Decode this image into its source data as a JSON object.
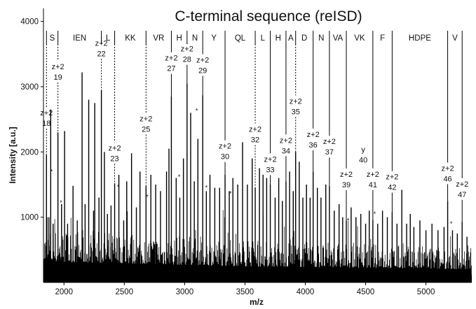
{
  "chart_data": {
    "type": "spectrum",
    "title": "C-terminal sequence (reISD)",
    "xlabel": "m/z",
    "ylabel": "Intensity [a.u.]",
    "xlim": [
      1830,
      5380
    ],
    "ylim": [
      0,
      4200
    ],
    "xticks": [
      {
        "value": 2000,
        "label": "2000"
      },
      {
        "value": 2500,
        "label": "2500"
      },
      {
        "value": 3000,
        "label": "3000"
      },
      {
        "value": 3500,
        "label": "3500"
      },
      {
        "value": 4000,
        "label": "4000"
      },
      {
        "value": 4500,
        "label": "4500"
      },
      {
        "value": 5000,
        "label": "5000"
      }
    ],
    "yticks": [
      {
        "value": 1000,
        "label": "1000"
      },
      {
        "value": 2000,
        "label": "2000"
      },
      {
        "value": 3000,
        "label": "3000"
      },
      {
        "value": 4000,
        "label": "4000"
      }
    ],
    "sequence_ladder_mz": [
      1855,
      1950,
      2310,
      2420,
      2680,
      2890,
      3020,
      3150,
      3335,
      3585,
      3710,
      3840,
      3920,
      4065,
      4200,
      4340,
      4560,
      4720,
      5180,
      5300
    ],
    "sequence_segments": [
      {
        "label": "S",
        "from": 1855,
        "to": 1950
      },
      {
        "label": "IEN",
        "from": 1950,
        "to": 2310
      },
      {
        "label": "L",
        "from": 2310,
        "to": 2420
      },
      {
        "label": "KK",
        "from": 2420,
        "to": 2680
      },
      {
        "label": "VR",
        "from": 2680,
        "to": 2890
      },
      {
        "label": "H",
        "from": 2890,
        "to": 3020
      },
      {
        "label": "N",
        "from": 3020,
        "to": 3150
      },
      {
        "label": "Y",
        "from": 3150,
        "to": 3335
      },
      {
        "label": "QL",
        "from": 3335,
        "to": 3585
      },
      {
        "label": "L",
        "from": 3585,
        "to": 3710
      },
      {
        "label": "H",
        "from": 3710,
        "to": 3840
      },
      {
        "label": "A",
        "from": 3840,
        "to": 3920
      },
      {
        "label": "D",
        "from": 3920,
        "to": 4065
      },
      {
        "label": "N",
        "from": 4065,
        "to": 4200
      },
      {
        "label": "VA",
        "from": 4200,
        "to": 4340
      },
      {
        "label": "VK",
        "from": 4340,
        "to": 4560
      },
      {
        "label": "F",
        "from": 4560,
        "to": 4720
      },
      {
        "label": "HDPE",
        "from": 4720,
        "to": 5180
      },
      {
        "label": "V",
        "from": 5180,
        "to": 5300
      }
    ],
    "ion_annotations": [
      {
        "mz": 1855,
        "top": "z+2",
        "num": "18",
        "label_y": 2420,
        "peak": 1960,
        "style": "dashed"
      },
      {
        "mz": 1950,
        "top": "z+2",
        "num": "19",
        "label_y": 3130,
        "peak": 2300,
        "style": "dashed"
      },
      {
        "mz": 2310,
        "top": "z+2",
        "num": "22",
        "label_y": 3490,
        "peak": 2950,
        "style": "dashed"
      },
      {
        "mz": 2420,
        "top": "z+2",
        "num": "23",
        "label_y": 1880,
        "peak": 1520,
        "style": "dashed"
      },
      {
        "mz": 2680,
        "top": "z+2",
        "num": "25",
        "label_y": 2330,
        "peak": 1480,
        "style": "dashed"
      },
      {
        "mz": 2890,
        "top": "z+2",
        "num": "27",
        "label_y": 3260,
        "peak": 2850,
        "style": "solid"
      },
      {
        "mz": 3020,
        "top": "z+2",
        "num": "28",
        "label_y": 3400,
        "peak": 3050,
        "style": "solid"
      },
      {
        "mz": 3150,
        "top": "z+2",
        "num": "29",
        "label_y": 3230,
        "peak": 2870,
        "style": "solid"
      },
      {
        "mz": 3335,
        "top": "z+2",
        "num": "30",
        "label_y": 1910,
        "peak": 1650,
        "style": "solid"
      },
      {
        "mz": 3585,
        "top": "z+2",
        "num": "32",
        "label_y": 2170,
        "peak": 1450,
        "style": "dashed"
      },
      {
        "mz": 3710,
        "top": "z+2",
        "num": "33",
        "label_y": 1710,
        "peak": 1500,
        "style": "solid"
      },
      {
        "mz": 3840,
        "top": "z+2",
        "num": "34",
        "label_y": 2000,
        "peak": 1550,
        "style": "solid"
      },
      {
        "mz": 3920,
        "top": "z+2",
        "num": "35",
        "label_y": 2600,
        "peak": 2000,
        "style": "dashed"
      },
      {
        "mz": 4065,
        "top": "z+2",
        "num": "36",
        "label_y": 2090,
        "peak": 1700,
        "style": "solid"
      },
      {
        "mz": 4200,
        "top": "z+2",
        "num": "37",
        "label_y": 1980,
        "peak": 1480,
        "style": "solid"
      },
      {
        "mz": 4340,
        "top": "z+2",
        "num": "39",
        "label_y": 1480,
        "peak": 950,
        "style": "solid"
      },
      {
        "mz": 4480,
        "top": "y",
        "num": "40",
        "label_y": 1860,
        "peak": 0,
        "style": "none"
      },
      {
        "mz": 4560,
        "top": "z+2",
        "num": "41",
        "label_y": 1480,
        "peak": 960,
        "style": "solid"
      },
      {
        "mz": 4720,
        "top": "z+2",
        "num": "42",
        "label_y": 1440,
        "peak": 1080,
        "style": "solid"
      },
      {
        "mz": 5180,
        "top": "z+2",
        "num": "46",
        "label_y": 1570,
        "peak": 1250,
        "style": "solid"
      },
      {
        "mz": 5300,
        "top": "z+2",
        "num": "47",
        "label_y": 1330,
        "peak": 930,
        "style": "solid"
      }
    ],
    "peaks": [
      {
        "mz": 1855,
        "i": 1960
      },
      {
        "mz": 1875,
        "i": 1000
      },
      {
        "mz": 1890,
        "i": 2650
      },
      {
        "mz": 1910,
        "i": 900
      },
      {
        "mz": 1950,
        "i": 2300
      },
      {
        "mz": 1980,
        "i": 1200
      },
      {
        "mz": 2005,
        "i": 2320
      },
      {
        "mz": 2030,
        "i": 900
      },
      {
        "mz": 2075,
        "i": 1480
      },
      {
        "mz": 2110,
        "i": 950
      },
      {
        "mz": 2150,
        "i": 3220
      },
      {
        "mz": 2175,
        "i": 1200
      },
      {
        "mz": 2205,
        "i": 2800
      },
      {
        "mz": 2245,
        "i": 1100
      },
      {
        "mz": 2255,
        "i": 2750
      },
      {
        "mz": 2290,
        "i": 1300
      },
      {
        "mz": 2310,
        "i": 2950
      },
      {
        "mz": 2335,
        "i": 2000
      },
      {
        "mz": 2360,
        "i": 1050
      },
      {
        "mz": 2390,
        "i": 1180
      },
      {
        "mz": 2420,
        "i": 1520
      },
      {
        "mz": 2455,
        "i": 1650
      },
      {
        "mz": 2495,
        "i": 950
      },
      {
        "mz": 2520,
        "i": 1550
      },
      {
        "mz": 2560,
        "i": 1980
      },
      {
        "mz": 2600,
        "i": 1150
      },
      {
        "mz": 2630,
        "i": 1700
      },
      {
        "mz": 2680,
        "i": 1480
      },
      {
        "mz": 2720,
        "i": 1650
      },
      {
        "mz": 2760,
        "i": 1500
      },
      {
        "mz": 2800,
        "i": 1400
      },
      {
        "mz": 2850,
        "i": 1700
      },
      {
        "mz": 2870,
        "i": 2050
      },
      {
        "mz": 2890,
        "i": 2850
      },
      {
        "mz": 2930,
        "i": 1600
      },
      {
        "mz": 2960,
        "i": 1300
      },
      {
        "mz": 2990,
        "i": 1900
      },
      {
        "mz": 3020,
        "i": 3050
      },
      {
        "mz": 3050,
        "i": 2600
      },
      {
        "mz": 3080,
        "i": 1550
      },
      {
        "mz": 3110,
        "i": 2200
      },
      {
        "mz": 3150,
        "i": 2870
      },
      {
        "mz": 3180,
        "i": 1400
      },
      {
        "mz": 3210,
        "i": 1650
      },
      {
        "mz": 3250,
        "i": 1450
      },
      {
        "mz": 3290,
        "i": 1450
      },
      {
        "mz": 3335,
        "i": 1650
      },
      {
        "mz": 3370,
        "i": 1400
      },
      {
        "mz": 3400,
        "i": 1600
      },
      {
        "mz": 3440,
        "i": 1500
      },
      {
        "mz": 3480,
        "i": 2150
      },
      {
        "mz": 3520,
        "i": 1500
      },
      {
        "mz": 3560,
        "i": 1900
      },
      {
        "mz": 3585,
        "i": 1450
      },
      {
        "mz": 3620,
        "i": 1750
      },
      {
        "mz": 3650,
        "i": 1650
      },
      {
        "mz": 3680,
        "i": 1600
      },
      {
        "mz": 3710,
        "i": 1500
      },
      {
        "mz": 3750,
        "i": 1300
      },
      {
        "mz": 3780,
        "i": 1600
      },
      {
        "mz": 3810,
        "i": 1250
      },
      {
        "mz": 3840,
        "i": 1550
      },
      {
        "mz": 3870,
        "i": 1700
      },
      {
        "mz": 3900,
        "i": 1400
      },
      {
        "mz": 3920,
        "i": 2000
      },
      {
        "mz": 3950,
        "i": 1850
      },
      {
        "mz": 3980,
        "i": 1300
      },
      {
        "mz": 4010,
        "i": 1500
      },
      {
        "mz": 4040,
        "i": 1300
      },
      {
        "mz": 4065,
        "i": 1700
      },
      {
        "mz": 4100,
        "i": 1450
      },
      {
        "mz": 4130,
        "i": 1300
      },
      {
        "mz": 4170,
        "i": 1500
      },
      {
        "mz": 4200,
        "i": 1480
      },
      {
        "mz": 4240,
        "i": 1100
      },
      {
        "mz": 4280,
        "i": 1200
      },
      {
        "mz": 4310,
        "i": 1000
      },
      {
        "mz": 4340,
        "i": 950
      },
      {
        "mz": 4380,
        "i": 1150
      },
      {
        "mz": 4420,
        "i": 1000
      },
      {
        "mz": 4460,
        "i": 1050
      },
      {
        "mz": 4500,
        "i": 900
      },
      {
        "mz": 4530,
        "i": 1100
      },
      {
        "mz": 4560,
        "i": 960
      },
      {
        "mz": 4600,
        "i": 900
      },
      {
        "mz": 4640,
        "i": 1100
      },
      {
        "mz": 4680,
        "i": 1000
      },
      {
        "mz": 4720,
        "i": 1080
      },
      {
        "mz": 4760,
        "i": 900
      },
      {
        "mz": 4800,
        "i": 1420
      },
      {
        "mz": 4840,
        "i": 900
      },
      {
        "mz": 4870,
        "i": 1050
      },
      {
        "mz": 4900,
        "i": 850
      },
      {
        "mz": 4950,
        "i": 950
      },
      {
        "mz": 5000,
        "i": 800
      },
      {
        "mz": 5050,
        "i": 900
      },
      {
        "mz": 5100,
        "i": 800
      },
      {
        "mz": 5150,
        "i": 850
      },
      {
        "mz": 5180,
        "i": 1250
      },
      {
        "mz": 5220,
        "i": 800
      },
      {
        "mz": 5260,
        "i": 750
      },
      {
        "mz": 5300,
        "i": 930
      },
      {
        "mz": 5340,
        "i": 700
      }
    ],
    "noise_envelope": [
      {
        "mz": 1830,
        "i": 700
      },
      {
        "mz": 2500,
        "i": 650
      },
      {
        "mz": 3500,
        "i": 550
      },
      {
        "mz": 4500,
        "i": 500
      },
      {
        "mz": 5380,
        "i": 450
      }
    ],
    "markers": [
      {
        "mz": 1897,
        "i": 1700,
        "label": "*"
      },
      {
        "mz": 1975,
        "i": 1220,
        "label": "*"
      },
      {
        "mz": 2450,
        "i": 1460,
        "label": "*"
      },
      {
        "mz": 2690,
        "i": 1310,
        "label": "*"
      },
      {
        "mz": 2955,
        "i": 1620,
        "label": "*"
      },
      {
        "mz": 3100,
        "i": 2630,
        "label": "*"
      },
      {
        "mz": 3180,
        "i": 1450,
        "label": "*"
      },
      {
        "mz": 3380,
        "i": 1360,
        "label": "*"
      },
      {
        "mz": 4355,
        "i": 950,
        "label": "*"
      },
      {
        "mz": 4575,
        "i": 1050,
        "label": "*"
      },
      {
        "mz": 5210,
        "i": 900,
        "label": "*"
      }
    ]
  }
}
